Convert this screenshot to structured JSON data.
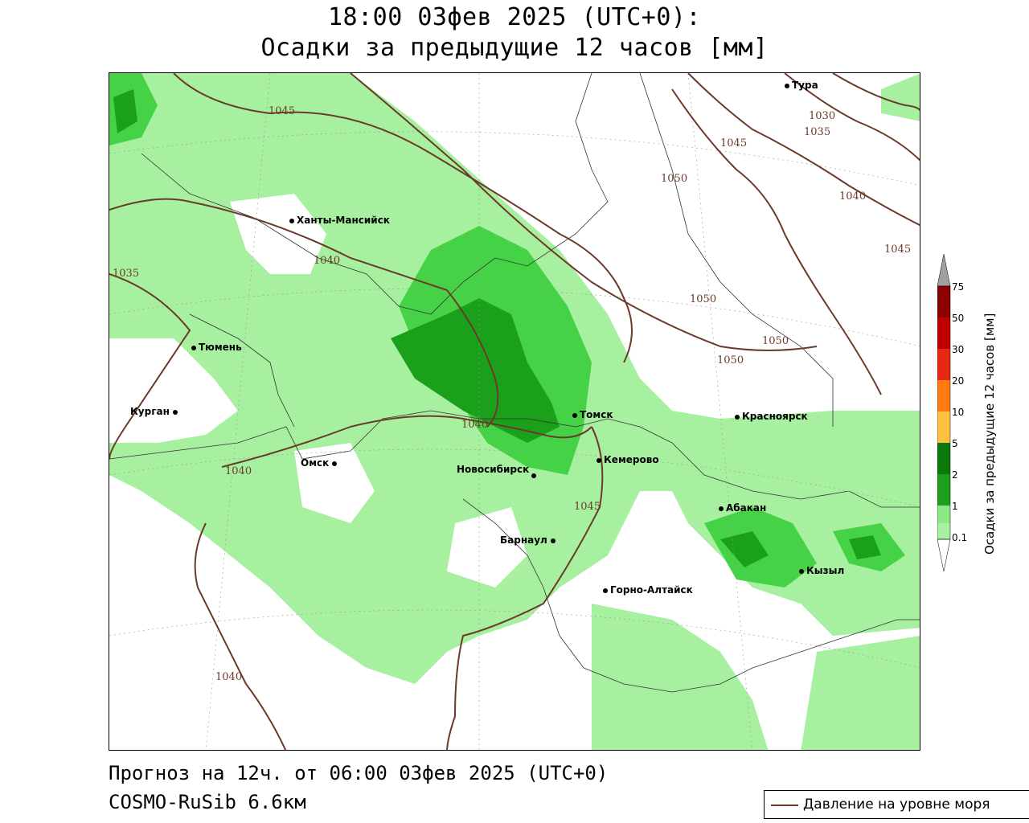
{
  "header": {
    "line1": "18:00 03фев 2025 (UTC+0):",
    "line2": "Осадки за предыдущие 12 часов [мм]"
  },
  "footer": {
    "forecast": "Прогноз на 12ч. от 06:00 03фев 2025 (UTC+0)",
    "model": "COSMO-RuSib 6.6км"
  },
  "pressure_legend": {
    "label": "Давление на уровне моря",
    "color": "#6b3a2a"
  },
  "colorbar": {
    "title": "Осадки за предыдущие 12 часов [мм]",
    "ticks": [
      "0.1",
      "1",
      "2",
      "5",
      "10",
      "20",
      "30",
      "50",
      "75"
    ],
    "colors": [
      "#ffffff",
      "#a6f0a0",
      "#8ee886",
      "#46d246",
      "#1aa01a",
      "#0a7a0a",
      "#ffc040",
      "#ff7a10",
      "#e82810",
      "#c00000",
      "#8c0000",
      "#a0a0a0"
    ]
  },
  "cities": [
    {
      "name": "Тура"
    },
    {
      "name": "Ханты-Мансийск"
    },
    {
      "name": "Тюмень"
    },
    {
      "name": "Курган"
    },
    {
      "name": "Омск"
    },
    {
      "name": "Новосибирск"
    },
    {
      "name": "Томск"
    },
    {
      "name": "Кемерово"
    },
    {
      "name": "Красноярск"
    },
    {
      "name": "Абакан"
    },
    {
      "name": "Барнаул"
    },
    {
      "name": "Горно-Алтайск"
    },
    {
      "name": "Кызыл"
    }
  ],
  "isobar_labels": [
    "1045",
    "1030",
    "1035",
    "1045",
    "1050",
    "1040",
    "1045",
    "1040",
    "1035",
    "1050",
    "1050",
    "1050",
    "1040",
    "1040",
    "1045",
    "1040"
  ]
}
